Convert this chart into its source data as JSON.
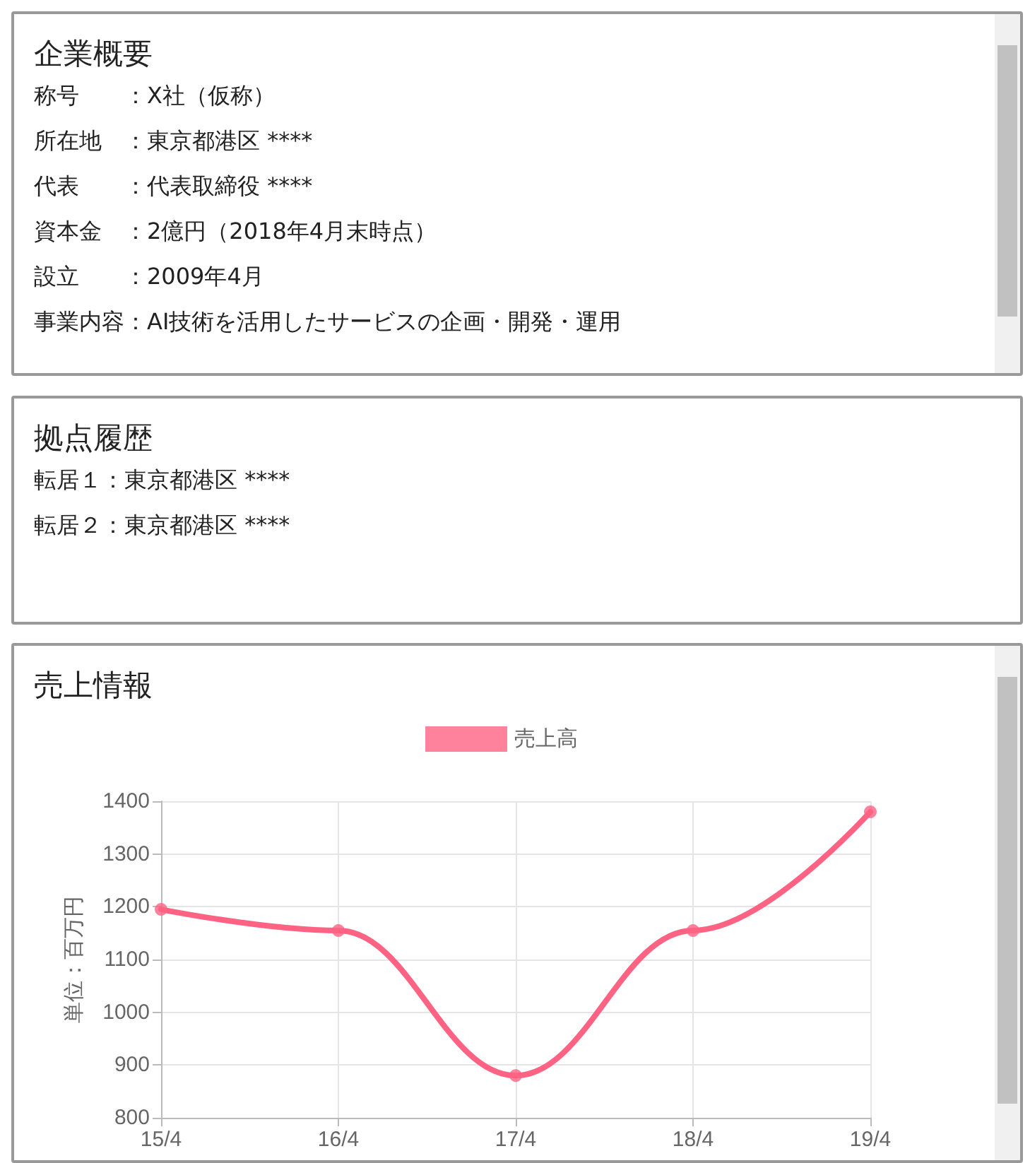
{
  "chart_data": [
    {
      "type": "other",
      "title": "企業概要",
      "annotations": [
        "称号　　：X社（仮称）",
        "所在地　：東京都港区 ****",
        "代表　　：代表取締役 ****",
        "資本金　：2億円（2018年4月末時点）",
        "設立　　：2009年4月",
        "事業内容：AI技術を活用したサービスの企画・開発・運用"
      ]
    },
    {
      "type": "other",
      "title": "拠点履歴",
      "annotations": [
        "転居１：東京都港区 ****",
        "転居２：東京都港区 ****"
      ]
    },
    {
      "type": "line",
      "title": "売上情報",
      "ylabel": "単位：百万円",
      "categories": [
        "15/4",
        "16/4",
        "17/4",
        "18/4",
        "19/4"
      ],
      "series": [
        {
          "name": "売上高",
          "color": "#ff6384",
          "values": [
            1195,
            1155,
            880,
            1155,
            1380
          ]
        }
      ],
      "ylim": [
        800,
        1400
      ],
      "yticks": [
        800,
        900,
        1000,
        1100,
        1200,
        1300,
        1400
      ],
      "grid": true,
      "legend": "top",
      "marker": "circle",
      "line_style": "solid"
    }
  ]
}
